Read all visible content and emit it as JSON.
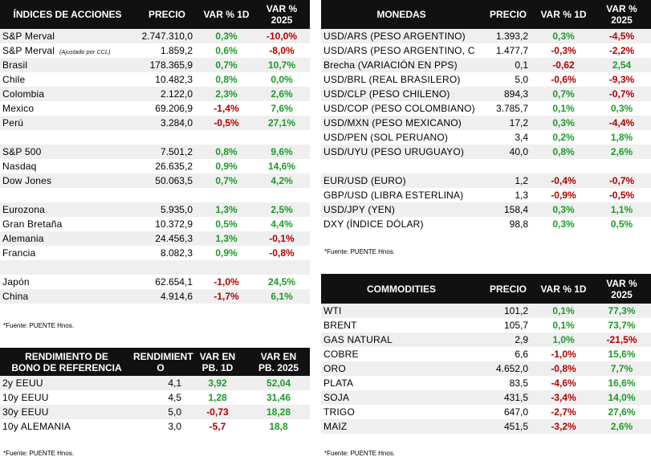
{
  "indices": {
    "headers": [
      "ÍNDICES DE ACCIONES",
      "PRECIO",
      "VAR % 1D",
      "VAR %\n2025"
    ],
    "rows": [
      {
        "name": "S&P Merval",
        "note": "",
        "price": "2.747.310,0",
        "d1": "0,3%",
        "ytd": "-10,0%",
        "d1c": "pos",
        "ytdc": "neg"
      },
      {
        "name": "S&P Merval",
        "note": "(Ajustado por CCL)",
        "price": "1.859,2",
        "d1": "0,6%",
        "ytd": "-8,0%",
        "d1c": "pos",
        "ytdc": "neg"
      },
      {
        "name": "Brasil",
        "note": "",
        "price": "178.365,9",
        "d1": "0,7%",
        "ytd": "10,7%",
        "d1c": "pos",
        "ytdc": "pos"
      },
      {
        "name": "Chile",
        "note": "",
        "price": "10.482,3",
        "d1": "0,8%",
        "ytd": "0,0%",
        "d1c": "pos",
        "ytdc": "pos"
      },
      {
        "name": "Colombia",
        "note": "",
        "price": "2.122,0",
        "d1": "2,3%",
        "ytd": "2,6%",
        "d1c": "pos",
        "ytdc": "pos"
      },
      {
        "name": "Mexico",
        "note": "",
        "price": "69.206,9",
        "d1": "-1,4%",
        "ytd": "7,6%",
        "d1c": "neg",
        "ytdc": "pos"
      },
      {
        "name": "Perú",
        "note": "",
        "price": "3.284,0",
        "d1": "-0,5%",
        "ytd": "27,1%",
        "d1c": "neg",
        "ytdc": "pos"
      },
      {
        "blank": true
      },
      {
        "name": "S&P 500",
        "note": "",
        "price": "7.501,2",
        "d1": "0,8%",
        "ytd": "9,6%",
        "d1c": "pos",
        "ytdc": "pos"
      },
      {
        "name": "Nasdaq",
        "note": "",
        "price": "26.635,2",
        "d1": "0,9%",
        "ytd": "14,6%",
        "d1c": "pos",
        "ytdc": "pos"
      },
      {
        "name": "Dow Jones",
        "note": "",
        "price": "50.063,5",
        "d1": "0,7%",
        "ytd": "4,2%",
        "d1c": "pos",
        "ytdc": "pos"
      },
      {
        "blank": true
      },
      {
        "name": "Eurozona",
        "note": "",
        "price": "5.935,0",
        "d1": "1,3%",
        "ytd": "2,5%",
        "d1c": "pos",
        "ytdc": "pos"
      },
      {
        "name": "Gran Bretaña",
        "note": "",
        "price": "10.372,9",
        "d1": "0,5%",
        "ytd": "4,4%",
        "d1c": "pos",
        "ytdc": "pos"
      },
      {
        "name": "Alemania",
        "note": "",
        "price": "24.456,3",
        "d1": "1,3%",
        "ytd": "-0,1%",
        "d1c": "pos",
        "ytdc": "neg"
      },
      {
        "name": "Francia",
        "note": "",
        "price": "8.082,3",
        "d1": "0,9%",
        "ytd": "-0,8%",
        "d1c": "pos",
        "ytdc": "neg"
      },
      {
        "blank": true
      },
      {
        "name": "Japón",
        "note": "",
        "price": "62.654,1",
        "d1": "-1,0%",
        "ytd": "24,5%",
        "d1c": "neg",
        "ytdc": "pos"
      },
      {
        "name": "China",
        "note": "",
        "price": "4.914,6",
        "d1": "-1,7%",
        "ytd": "6,1%",
        "d1c": "neg",
        "ytdc": "pos"
      }
    ],
    "footnote": "*Fuente: PUENTE Hnos."
  },
  "monedas": {
    "headers": [
      "MONEDAS",
      "PRECIO",
      "VAR % 1D",
      "VAR %\n2025"
    ],
    "rows": [
      {
        "name": "USD/ARS (PESO ARGENTINO)",
        "price": "1.393,2",
        "d1": "0,3%",
        "ytd": "-4,5%",
        "d1c": "pos",
        "ytdc": "neg"
      },
      {
        "name": "USD/ARS (PESO ARGENTINO, C",
        "price": "1.477,7",
        "d1": "-0,3%",
        "ytd": "-2,2%",
        "d1c": "neg",
        "ytdc": "neg"
      },
      {
        "name": "Brecha (VARIACIÓN EN PPS)",
        "price": "0,1",
        "d1": "-0,62",
        "ytd": "2,54",
        "d1c": "neg",
        "ytdc": "pos"
      },
      {
        "name": "USD/BRL (REAL BRASILERO)",
        "price": "5,0",
        "d1": "-0,6%",
        "ytd": "-9,3%",
        "d1c": "neg",
        "ytdc": "neg"
      },
      {
        "name": "USD/CLP (PESO CHILENO)",
        "price": "894,3",
        "d1": "0,7%",
        "ytd": "-0,7%",
        "d1c": "pos",
        "ytdc": "neg"
      },
      {
        "name": "USD/COP (PESO COLOMBIANO)",
        "price": "3.785,7",
        "d1": "0,1%",
        "ytd": "0,3%",
        "d1c": "pos",
        "ytdc": "pos"
      },
      {
        "name": "USD/MXN (PESO MEXICANO)",
        "price": "17,2",
        "d1": "0,3%",
        "ytd": "-4,4%",
        "d1c": "pos",
        "ytdc": "neg"
      },
      {
        "name": "USD/PEN (SOL PERUANO)",
        "price": "3,4",
        "d1": "0,2%",
        "ytd": "1,8%",
        "d1c": "pos",
        "ytdc": "pos"
      },
      {
        "name": "USD/UYU (PESO URUGUAYO)",
        "price": "40,0",
        "d1": "0,8%",
        "ytd": "2,6%",
        "d1c": "pos",
        "ytdc": "pos"
      },
      {
        "blank": true
      },
      {
        "name": "EUR/USD (EURO)",
        "price": "1,2",
        "d1": "-0,4%",
        "ytd": "-0,7%",
        "d1c": "neg",
        "ytdc": "neg"
      },
      {
        "name": "GBP/USD (LIBRA ESTERLINA)",
        "price": "1,3",
        "d1": "-0,9%",
        "ytd": "-0,5%",
        "d1c": "neg",
        "ytdc": "neg"
      },
      {
        "name": "USD/JPY (YEN)",
        "price": "158,4",
        "d1": "0,3%",
        "ytd": "1,1%",
        "d1c": "pos",
        "ytdc": "pos"
      },
      {
        "name": "DXY (ÍNDICE DÓLAR)",
        "price": "98,8",
        "d1": "0,3%",
        "ytd": "0,5%",
        "d1c": "pos",
        "ytdc": "pos"
      }
    ],
    "footnote": "*Fuente: PUENTE Hnos."
  },
  "commodities": {
    "headers": [
      "COMMODITIES",
      "PRECIO",
      "VAR % 1D",
      "VAR %\n2025"
    ],
    "rows": [
      {
        "name": "WTI",
        "price": "101,2",
        "d1": "0,1%",
        "ytd": "77,3%",
        "d1c": "pos",
        "ytdc": "pos"
      },
      {
        "name": "BRENT",
        "price": "105,7",
        "d1": "0,1%",
        "ytd": "73,7%",
        "d1c": "pos",
        "ytdc": "pos"
      },
      {
        "name": "GAS NATURAL",
        "price": "2,9",
        "d1": "1,0%",
        "ytd": "-21,5%",
        "d1c": "pos",
        "ytdc": "neg"
      },
      {
        "name": "COBRE",
        "price": "6,6",
        "d1": "-1,0%",
        "ytd": "15,6%",
        "d1c": "neg",
        "ytdc": "pos"
      },
      {
        "name": "ORO",
        "price": "4.652,0",
        "d1": "-0,8%",
        "ytd": "7,7%",
        "d1c": "neg",
        "ytdc": "pos"
      },
      {
        "name": "PLATA",
        "price": "83,5",
        "d1": "-4,6%",
        "ytd": "16,6%",
        "d1c": "neg",
        "ytdc": "pos"
      },
      {
        "name": "SOJA",
        "price": "431,5",
        "d1": "-3,4%",
        "ytd": "14,0%",
        "d1c": "neg",
        "ytdc": "pos"
      },
      {
        "name": "TRIGO",
        "price": "647,0",
        "d1": "-2,7%",
        "ytd": "27,6%",
        "d1c": "neg",
        "ytdc": "pos"
      },
      {
        "name": "MAIZ",
        "price": "451,5",
        "d1": "-3,2%",
        "ytd": "2,6%",
        "d1c": "neg",
        "ytdc": "pos"
      }
    ],
    "footnote": "*Fuente: PUENTE Hnos."
  },
  "bonos": {
    "headers": [
      "RENDIMIENTO DE\nBONO DE REFERENCIA",
      "RENDIMIENT\nO",
      "VAR EN\nPB. 1D",
      "VAR EN\nPB. 2025"
    ],
    "rows": [
      {
        "name": "2y EEUU",
        "price": "4,1",
        "d1": "3,92",
        "ytd": "52,04",
        "d1c": "pos",
        "ytdc": "pos"
      },
      {
        "name": "10y EEUU",
        "price": "4,5",
        "d1": "1,28",
        "ytd": "31,46",
        "d1c": "pos",
        "ytdc": "pos"
      },
      {
        "name": "30y EEUU",
        "price": "5,0",
        "d1": "-0,73",
        "ytd": "18,28",
        "d1c": "neg",
        "ytdc": "pos"
      },
      {
        "name": "10y ALEMANIA",
        "price": "3,0",
        "d1": "-5,7",
        "ytd": "18,8",
        "d1c": "neg",
        "ytdc": "pos"
      }
    ],
    "footnote": "*Fuente: PUENTE Hnos."
  }
}
